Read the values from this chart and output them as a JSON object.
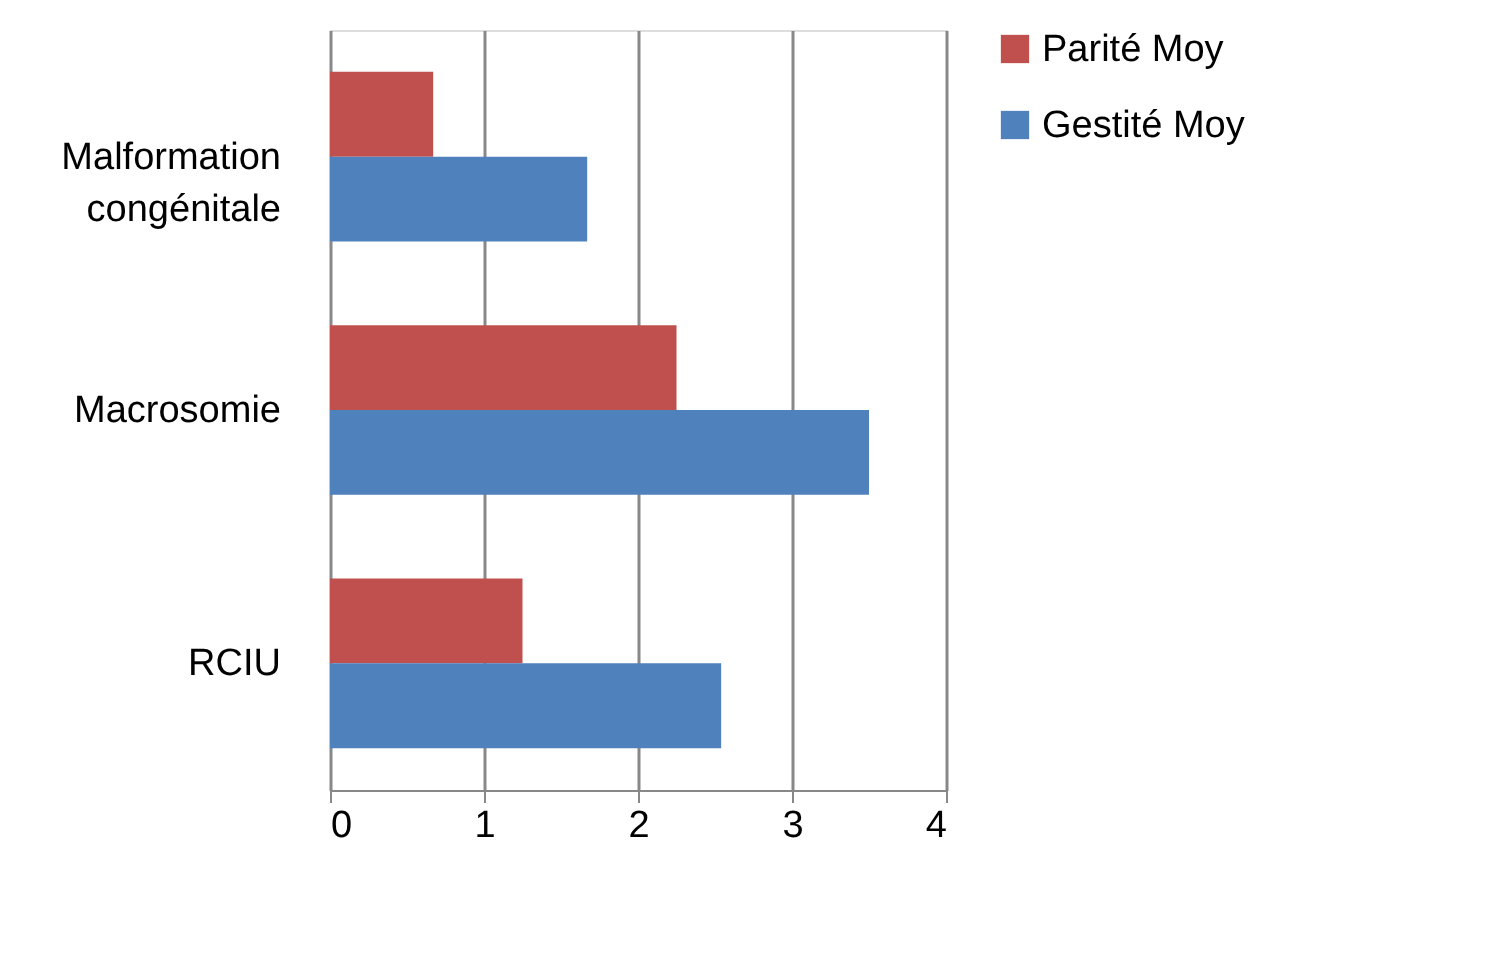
{
  "chart_data": {
    "type": "bar",
    "orientation": "horizontal",
    "categories": [
      "Malformation congénitale",
      "Macrosomie",
      "RCIU"
    ],
    "series": [
      {
        "name": "Parité Moy",
        "color": "#c0504d",
        "values": [
          0.67,
          2.25,
          1.25
        ]
      },
      {
        "name": "Gestité Moy",
        "color": "#4f81bd",
        "values": [
          1.67,
          3.5,
          2.54
        ]
      }
    ],
    "xlim": [
      0,
      4
    ],
    "xticks": [
      0,
      1,
      2,
      3,
      4
    ],
    "grid": "x",
    "legend": "right"
  }
}
